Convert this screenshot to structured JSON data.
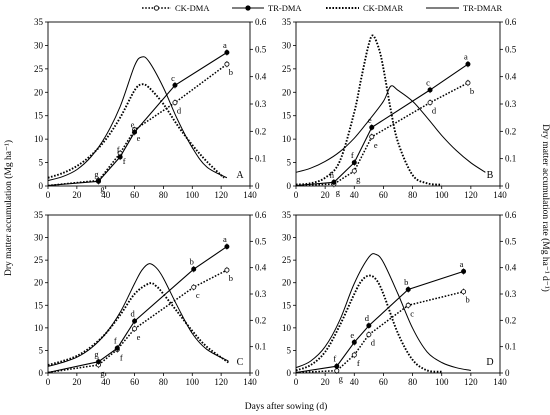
{
  "figure": {
    "xlabel": "Days after sowing (d)",
    "ylabel_left": "Dry matter accumulation (Mg ha⁻¹)",
    "ylabel_right": "Dry matter accumulation rate (Mg ha⁻¹ d⁻¹)",
    "legend": [
      {
        "key": "ck_dma",
        "label": "CK-DMA",
        "style": "dotted",
        "marker": "open-circle"
      },
      {
        "key": "tr_dma",
        "label": "TR-DMA",
        "style": "solid",
        "marker": "filled-circle"
      },
      {
        "key": "ck_dmar",
        "label": "CK-DMAR",
        "style": "dotted",
        "marker": "none"
      },
      {
        "key": "tr_dmar",
        "label": "TR-DMAR",
        "style": "solid",
        "marker": "none"
      }
    ]
  },
  "chart_data": [
    {
      "panel": "A",
      "type": "line",
      "xlim": [
        0,
        140
      ],
      "ylim_left": [
        0,
        35
      ],
      "ylim_right": [
        0,
        0.6
      ],
      "xticks": [
        "0",
        "20",
        "40",
        "60",
        "80",
        "100",
        "120",
        "140"
      ],
      "yticks_left": [
        "0",
        "5",
        "10",
        "15",
        "20",
        "25",
        "30",
        "35"
      ],
      "yticks_right": [
        "0",
        "0.1",
        "0.2",
        "0.3",
        "0.4",
        "0.5",
        "0.6"
      ],
      "series": [
        {
          "name": "CK-DMA",
          "x": [
            0,
            35,
            50,
            60,
            88,
            124
          ],
          "y": [
            0.1,
            1.2,
            7.0,
            12.0,
            17.8,
            26.0
          ],
          "labels": [
            "",
            "g",
            "f",
            "e",
            "d",
            "b"
          ]
        },
        {
          "name": "TR-DMA",
          "x": [
            0,
            35,
            50,
            60,
            88,
            124
          ],
          "y": [
            0.1,
            1.0,
            6.2,
            11.5,
            21.5,
            28.5
          ],
          "labels": [
            "",
            "g",
            "f",
            "e",
            "c",
            "a"
          ]
        },
        {
          "name": "CK-DMAR",
          "x": [
            0,
            10,
            20,
            30,
            40,
            50,
            60,
            65,
            70,
            80,
            90,
            100,
            110,
            122
          ],
          "y": [
            0.03,
            0.047,
            0.073,
            0.113,
            0.17,
            0.25,
            0.35,
            0.372,
            0.36,
            0.3,
            0.22,
            0.15,
            0.09,
            0.03
          ]
        },
        {
          "name": "TR-DMAR",
          "x": [
            0,
            10,
            20,
            30,
            40,
            50,
            60,
            65,
            70,
            80,
            90,
            100,
            110,
            124
          ],
          "y": [
            0.02,
            0.034,
            0.06,
            0.108,
            0.183,
            0.29,
            0.44,
            0.472,
            0.455,
            0.36,
            0.24,
            0.14,
            0.07,
            0.03
          ]
        }
      ]
    },
    {
      "panel": "B",
      "type": "line",
      "xlim": [
        0,
        140
      ],
      "ylim_left": [
        0,
        35
      ],
      "ylim_right": [
        0,
        0.6
      ],
      "xticks": [
        "0",
        "20",
        "40",
        "60",
        "80",
        "100",
        "120",
        "140"
      ],
      "yticks_left": [
        "0",
        "5",
        "10",
        "15",
        "20",
        "25",
        "30",
        "35"
      ],
      "yticks_right": [
        "0",
        "0.1",
        "0.2",
        "0.3",
        "0.4",
        "0.5",
        "0.6"
      ],
      "series": [
        {
          "name": "CK-DMA",
          "x": [
            0,
            26,
            40,
            52,
            92,
            118
          ],
          "y": [
            0.1,
            0.4,
            3.2,
            10.5,
            17.8,
            22.0
          ],
          "labels": [
            "",
            "g",
            "g",
            "e",
            "d",
            "b"
          ]
        },
        {
          "name": "TR-DMA",
          "x": [
            0,
            26,
            40,
            52,
            92,
            118
          ],
          "y": [
            0.1,
            0.8,
            5.0,
            12.5,
            20.5,
            26.0
          ],
          "labels": [
            "",
            "h",
            "f",
            "e",
            "c",
            "a"
          ]
        },
        {
          "name": "CK-DMAR",
          "x": [
            0,
            10,
            20,
            30,
            40,
            45,
            50,
            53,
            57,
            60,
            65,
            70,
            80,
            90,
            100
          ],
          "y": [
            0.005,
            0.01,
            0.03,
            0.09,
            0.27,
            0.4,
            0.52,
            0.55,
            0.5,
            0.43,
            0.28,
            0.16,
            0.04,
            0.01,
            0.005
          ]
        },
        {
          "name": "TR-DMAR",
          "x": [
            0,
            10,
            20,
            30,
            40,
            50,
            60,
            65,
            70,
            80,
            90,
            100,
            110,
            120,
            130
          ],
          "y": [
            0.05,
            0.065,
            0.09,
            0.125,
            0.175,
            0.24,
            0.31,
            0.365,
            0.35,
            0.31,
            0.25,
            0.185,
            0.13,
            0.085,
            0.05
          ]
        }
      ]
    },
    {
      "panel": "C",
      "type": "line",
      "xlim": [
        0,
        140
      ],
      "ylim_left": [
        0,
        35
      ],
      "ylim_right": [
        0,
        0.6
      ],
      "xticks": [
        "0",
        "20",
        "40",
        "60",
        "80",
        "100",
        "120",
        "140"
      ],
      "yticks_left": [
        "0",
        "5",
        "10",
        "15",
        "20",
        "25",
        "30",
        "35"
      ],
      "yticks_right": [
        "0",
        "0.1",
        "0.2",
        "0.3",
        "0.4",
        "0.5",
        "0.6"
      ],
      "series": [
        {
          "name": "CK-DMA",
          "x": [
            0,
            35,
            48,
            60,
            101,
            124
          ],
          "y": [
            0.1,
            1.8,
            5.2,
            9.8,
            19.0,
            22.8
          ],
          "labels": [
            "",
            "g",
            "f",
            "e",
            "c",
            "b"
          ]
        },
        {
          "name": "TR-DMA",
          "x": [
            0,
            35,
            48,
            60,
            101,
            124
          ],
          "y": [
            0.1,
            2.5,
            5.5,
            11.5,
            23.0,
            28.0
          ],
          "labels": [
            "",
            "g",
            "f",
            "d",
            "b",
            "a"
          ]
        },
        {
          "name": "CK-DMAR",
          "x": [
            0,
            10,
            20,
            30,
            40,
            50,
            60,
            70,
            75,
            80,
            90,
            100,
            110,
            125
          ],
          "y": [
            0.03,
            0.045,
            0.065,
            0.1,
            0.15,
            0.22,
            0.3,
            0.34,
            0.33,
            0.3,
            0.23,
            0.16,
            0.1,
            0.04
          ]
        },
        {
          "name": "TR-DMAR",
          "x": [
            0,
            10,
            20,
            30,
            40,
            50,
            60,
            65,
            70,
            75,
            80,
            90,
            100,
            110,
            125
          ],
          "y": [
            0.025,
            0.04,
            0.06,
            0.095,
            0.15,
            0.23,
            0.34,
            0.39,
            0.415,
            0.4,
            0.36,
            0.25,
            0.15,
            0.09,
            0.045
          ]
        }
      ]
    },
    {
      "panel": "D",
      "type": "line",
      "xlim": [
        0,
        140
      ],
      "ylim_left": [
        0,
        35
      ],
      "ylim_right": [
        0,
        0.6
      ],
      "xticks": [
        "0",
        "20",
        "40",
        "60",
        "80",
        "100",
        "120",
        "140"
      ],
      "yticks_left": [
        "0",
        "5",
        "10",
        "15",
        "20",
        "25",
        "30",
        "35"
      ],
      "yticks_right": [
        "0",
        "0.1",
        "0.2",
        "0.3",
        "0.4",
        "0.5",
        "0.6"
      ],
      "series": [
        {
          "name": "CK-DMA",
          "x": [
            0,
            28,
            40,
            50,
            77,
            115
          ],
          "y": [
            0.1,
            0.5,
            4.0,
            8.5,
            15.0,
            18.0
          ],
          "labels": [
            "",
            "g",
            "f",
            "d",
            "c",
            "b"
          ]
        },
        {
          "name": "TR-DMA",
          "x": [
            0,
            28,
            40,
            50,
            77,
            115
          ],
          "y": [
            0.1,
            1.5,
            6.8,
            10.5,
            18.5,
            22.5
          ],
          "labels": [
            "",
            "f",
            "e",
            "d",
            "b",
            "a"
          ]
        },
        {
          "name": "CK-DMAR",
          "x": [
            0,
            10,
            20,
            30,
            40,
            45,
            50,
            55,
            60,
            70,
            80,
            90,
            100
          ],
          "y": [
            0.01,
            0.03,
            0.08,
            0.18,
            0.3,
            0.35,
            0.37,
            0.355,
            0.3,
            0.15,
            0.05,
            0.01,
            0.005
          ]
        },
        {
          "name": "TR-DMAR",
          "x": [
            0,
            10,
            20,
            30,
            40,
            50,
            55,
            60,
            70,
            80,
            90,
            100,
            110,
            120
          ],
          "y": [
            0.02,
            0.045,
            0.1,
            0.2,
            0.34,
            0.44,
            0.45,
            0.42,
            0.3,
            0.17,
            0.08,
            0.04,
            0.02,
            0.01
          ]
        }
      ]
    }
  ]
}
